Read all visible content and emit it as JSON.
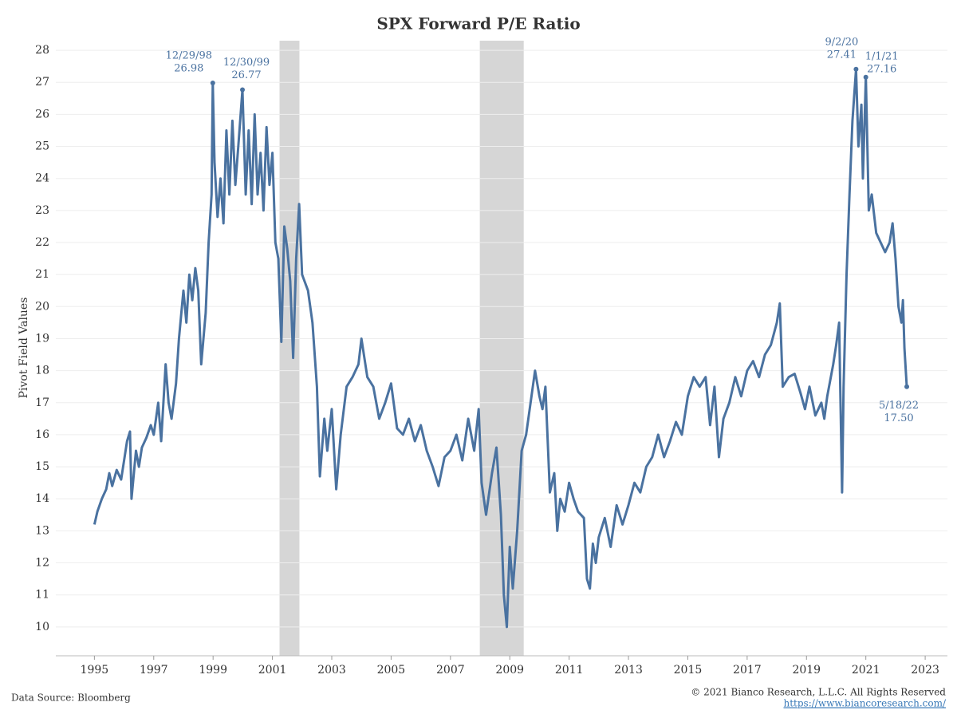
{
  "chart_data": {
    "type": "line",
    "title": "SPX Forward P/E Ratio",
    "y_label": "Pivot Field Values",
    "source": "Data Source: Bloomberg",
    "copyright": "© 2021 Bianco Research, L.L.C. All Rights Reserved",
    "url": "https://www.biancoresearch.com/",
    "xlim": [
      1993.7,
      2023.75
    ],
    "xticks": [
      1995,
      1997,
      1999,
      2001,
      2003,
      2005,
      2007,
      2009,
      2011,
      2013,
      2015,
      2017,
      2019,
      2021,
      2023
    ],
    "ylim": [
      9.1,
      28.45
    ],
    "yticks": [
      10,
      11,
      12,
      13,
      14,
      15,
      16,
      17,
      18,
      19,
      20,
      21,
      22,
      23,
      24,
      25,
      26,
      27,
      28
    ],
    "grid": true,
    "shade_color": "#d6d6d6",
    "shaded_regions": [
      [
        2001.24,
        2001.91
      ],
      [
        2007.99,
        2009.47
      ]
    ],
    "x": [
      1995.0,
      1995.1,
      1995.25,
      1995.4,
      1995.5,
      1995.6,
      1995.75,
      1995.9,
      1996.0,
      1996.1,
      1996.2,
      1996.25,
      1996.4,
      1996.5,
      1996.6,
      1996.75,
      1996.9,
      1997.0,
      1997.15,
      1997.25,
      1997.4,
      1997.5,
      1997.6,
      1997.75,
      1997.85,
      1998.0,
      1998.1,
      1998.2,
      1998.3,
      1998.4,
      1998.5,
      1998.6,
      1998.75,
      1998.85,
      1998.95,
      1998.99,
      1999.05,
      1999.15,
      1999.25,
      1999.35,
      1999.45,
      1999.55,
      1999.65,
      1999.75,
      1999.85,
      1999.99,
      2000.1,
      2000.2,
      2000.3,
      2000.4,
      2000.5,
      2000.6,
      2000.7,
      2000.8,
      2000.9,
      2001.0,
      2001.1,
      2001.2,
      2001.3,
      2001.4,
      2001.5,
      2001.6,
      2001.7,
      2001.8,
      2001.9,
      2002.0,
      2002.2,
      2002.35,
      2002.5,
      2002.6,
      2002.75,
      2002.85,
      2003.0,
      2003.15,
      2003.3,
      2003.5,
      2003.7,
      2003.9,
      2004.0,
      2004.2,
      2004.4,
      2004.6,
      2004.8,
      2005.0,
      2005.2,
      2005.4,
      2005.6,
      2005.8,
      2006.0,
      2006.2,
      2006.4,
      2006.6,
      2006.8,
      2007.0,
      2007.2,
      2007.4,
      2007.6,
      2007.8,
      2007.95,
      2008.05,
      2008.2,
      2008.4,
      2008.55,
      2008.7,
      2008.8,
      2008.9,
      2009.0,
      2009.1,
      2009.25,
      2009.4,
      2009.55,
      2009.7,
      2009.85,
      2010.0,
      2010.1,
      2010.2,
      2010.35,
      2010.5,
      2010.6,
      2010.7,
      2010.85,
      2011.0,
      2011.15,
      2011.3,
      2011.5,
      2011.6,
      2011.7,
      2011.8,
      2011.9,
      2012.0,
      2012.2,
      2012.4,
      2012.6,
      2012.8,
      2013.0,
      2013.2,
      2013.4,
      2013.6,
      2013.8,
      2014.0,
      2014.2,
      2014.4,
      2014.6,
      2014.8,
      2015.0,
      2015.2,
      2015.4,
      2015.6,
      2015.75,
      2015.9,
      2016.05,
      2016.2,
      2016.4,
      2016.6,
      2016.8,
      2017.0,
      2017.2,
      2017.4,
      2017.6,
      2017.8,
      2018.0,
      2018.1,
      2018.2,
      2018.4,
      2018.6,
      2018.8,
      2018.95,
      2019.1,
      2019.3,
      2019.5,
      2019.6,
      2019.7,
      2019.9,
      2020.0,
      2020.1,
      2020.2,
      2020.25,
      2020.35,
      2020.45,
      2020.55,
      2020.67,
      2020.75,
      2020.85,
      2020.9,
      2021.0,
      2021.1,
      2021.2,
      2021.35,
      2021.5,
      2021.65,
      2021.8,
      2021.9,
      2022.0,
      2022.1,
      2022.2,
      2022.25,
      2022.3,
      2022.38
    ],
    "series": [
      {
        "name": "SPX Forward P/E",
        "color": "#4a72a0",
        "values": [
          13.2,
          13.6,
          14.0,
          14.3,
          14.8,
          14.4,
          14.9,
          14.6,
          15.2,
          15.8,
          16.1,
          14.0,
          15.5,
          15.0,
          15.6,
          15.9,
          16.3,
          16.0,
          17.0,
          15.8,
          18.2,
          17.0,
          16.5,
          17.6,
          19.0,
          20.5,
          19.5,
          21.0,
          20.2,
          21.2,
          20.5,
          18.2,
          19.8,
          22.0,
          23.5,
          26.98,
          24.5,
          22.8,
          24.0,
          22.6,
          25.5,
          23.5,
          25.8,
          23.8,
          25.0,
          26.77,
          23.5,
          25.5,
          23.2,
          26.0,
          23.5,
          24.8,
          23.0,
          25.6,
          23.8,
          24.8,
          22.0,
          21.5,
          18.9,
          22.5,
          21.8,
          20.8,
          18.4,
          21.5,
          23.2,
          21.0,
          20.5,
          19.5,
          17.5,
          14.7,
          16.5,
          15.5,
          16.8,
          14.3,
          16.0,
          17.5,
          17.8,
          18.2,
          19.0,
          17.8,
          17.5,
          16.5,
          17.0,
          17.6,
          16.2,
          16.0,
          16.5,
          15.8,
          16.3,
          15.5,
          15.0,
          14.4,
          15.3,
          15.5,
          16.0,
          15.2,
          16.5,
          15.5,
          16.8,
          14.5,
          13.5,
          14.8,
          15.6,
          13.5,
          11.0,
          10.0,
          12.5,
          11.2,
          13.0,
          15.5,
          16.0,
          17.0,
          18.0,
          17.2,
          16.8,
          17.5,
          14.2,
          14.8,
          13.0,
          14.0,
          13.6,
          14.5,
          14.0,
          13.6,
          13.4,
          11.5,
          11.2,
          12.6,
          12.0,
          12.8,
          13.4,
          12.5,
          13.8,
          13.2,
          13.8,
          14.5,
          14.2,
          15.0,
          15.3,
          16.0,
          15.3,
          15.8,
          16.4,
          16.0,
          17.2,
          17.8,
          17.5,
          17.8,
          16.3,
          17.5,
          15.3,
          16.5,
          17.0,
          17.8,
          17.2,
          18.0,
          18.3,
          17.8,
          18.5,
          18.8,
          19.5,
          20.1,
          17.5,
          17.8,
          17.9,
          17.3,
          16.8,
          17.5,
          16.6,
          17.0,
          16.5,
          17.2,
          18.2,
          18.8,
          19.5,
          14.2,
          17.5,
          21.0,
          23.5,
          25.8,
          27.41,
          25.0,
          26.3,
          24.0,
          27.16,
          23.0,
          23.5,
          22.3,
          22.0,
          21.7,
          22.0,
          22.6,
          21.5,
          20.0,
          19.5,
          20.2,
          18.7,
          17.5
        ]
      }
    ],
    "annotations": [
      {
        "date": "12/29/98",
        "x": 1998.99,
        "y": 26.98
      },
      {
        "date": "12/30/99",
        "x": 1999.99,
        "y": 26.77
      },
      {
        "date": "9/2/20",
        "x": 2020.67,
        "y": 27.41
      },
      {
        "date": "1/1/21",
        "x": 2021.0,
        "y": 27.16
      },
      {
        "date": "5/18/22",
        "x": 2022.38,
        "y": 17.5,
        "y_label": "17.50"
      }
    ]
  }
}
